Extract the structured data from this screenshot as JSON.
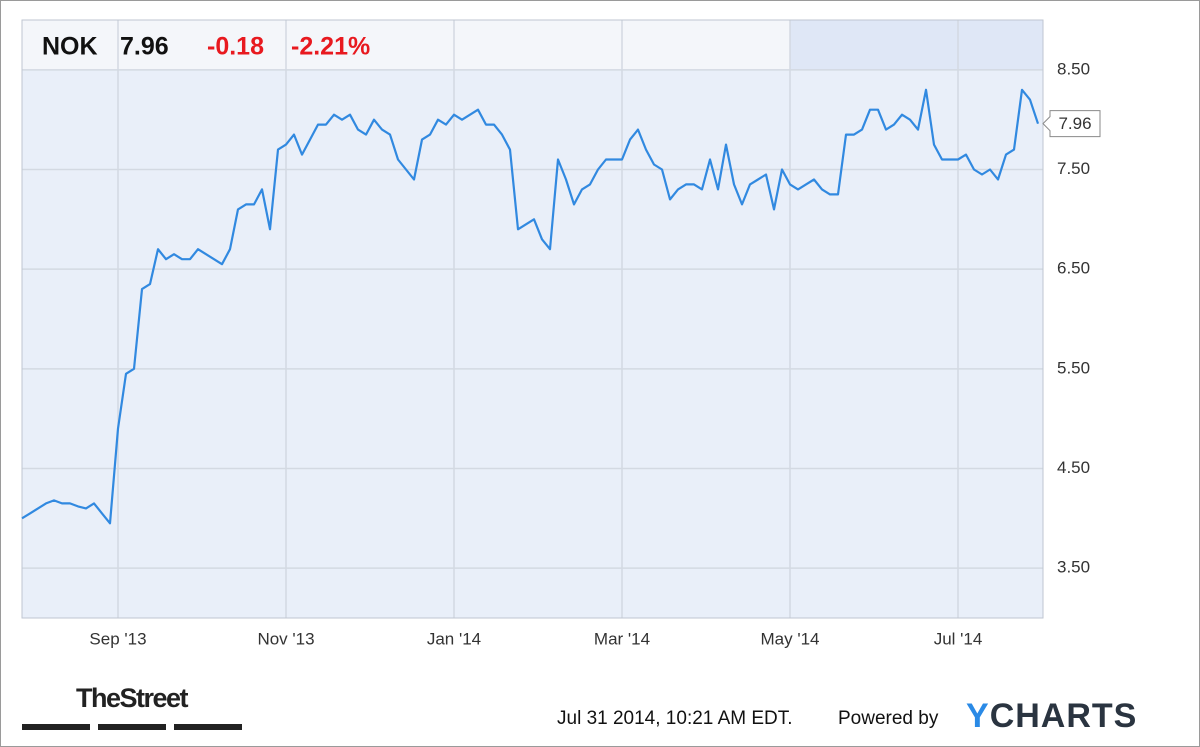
{
  "chart_data": {
    "type": "line",
    "title": "NOK",
    "price": "7.96",
    "change": "-0.18",
    "change_percent": "-2.21%",
    "color": "#3189e0",
    "categories": [
      null,
      null,
      null,
      null,
      null,
      null,
      null,
      null,
      null,
      null,
      null,
      null,
      "Sep '13",
      null,
      null,
      null,
      null,
      null,
      null,
      null,
      null,
      null,
      null,
      null,
      null,
      null,
      null,
      null,
      null,
      null,
      null,
      null,
      null,
      "Nov '13",
      null,
      null,
      null,
      null,
      null,
      null,
      null,
      null,
      null,
      null,
      null,
      null,
      null,
      null,
      null,
      null,
      null,
      null,
      null,
      null,
      "Jan '14",
      null,
      null,
      null,
      null,
      null,
      null,
      null,
      null,
      null,
      null,
      null,
      null,
      null,
      null,
      null,
      null,
      null,
      null,
      null,
      null,
      "Mar '14",
      null,
      null,
      null,
      null,
      null,
      null,
      null,
      null,
      null,
      null,
      null,
      null,
      null,
      null,
      null,
      null,
      null,
      null,
      null,
      null,
      "May '14",
      null,
      null,
      null,
      null,
      null,
      null,
      null,
      null,
      null,
      null,
      null,
      null,
      null,
      null,
      null,
      null,
      null,
      null,
      null,
      null,
      "Jul '14",
      null,
      null,
      null,
      null,
      null,
      null,
      null,
      null,
      null,
      null
    ],
    "values": [
      4.0,
      4.05,
      4.1,
      4.15,
      4.18,
      4.15,
      4.15,
      4.12,
      4.1,
      4.15,
      4.05,
      3.95,
      4.9,
      5.45,
      5.5,
      6.3,
      6.35,
      6.7,
      6.6,
      6.65,
      6.6,
      6.6,
      6.7,
      6.65,
      6.6,
      6.55,
      6.7,
      7.1,
      7.15,
      7.15,
      7.3,
      6.9,
      7.7,
      7.75,
      7.85,
      7.65,
      7.8,
      7.95,
      7.95,
      8.05,
      8.0,
      8.05,
      7.9,
      7.85,
      8.0,
      7.9,
      7.85,
      7.6,
      7.5,
      7.4,
      7.8,
      7.85,
      8.0,
      7.95,
      8.05,
      8.0,
      8.05,
      8.1,
      7.95,
      7.95,
      7.85,
      7.7,
      6.9,
      6.95,
      7.0,
      6.8,
      6.7,
      7.6,
      7.4,
      7.15,
      7.3,
      7.35,
      7.5,
      7.6,
      7.6,
      7.6,
      7.8,
      7.9,
      7.7,
      7.55,
      7.5,
      7.2,
      7.3,
      7.35,
      7.35,
      7.3,
      7.6,
      7.3,
      7.75,
      7.35,
      7.15,
      7.35,
      7.4,
      7.45,
      7.1,
      7.5,
      7.35,
      7.3,
      7.35,
      7.4,
      7.3,
      7.25,
      7.25,
      7.85,
      7.85,
      7.9,
      8.1,
      8.1,
      7.9,
      7.95,
      8.05,
      8.0,
      7.9,
      8.3,
      7.75,
      7.6,
      7.6,
      7.6,
      7.65,
      7.5,
      7.45,
      7.5,
      7.4,
      7.65,
      7.7,
      8.3,
      8.2,
      7.96
    ],
    "ylim": [
      3,
      9
    ],
    "yticks": [
      {
        "value": 3.5,
        "label": "3.50"
      },
      {
        "value": 4.5,
        "label": "4.50"
      },
      {
        "value": 5.5,
        "label": "5.50"
      },
      {
        "value": 6.5,
        "label": "6.50"
      },
      {
        "value": 7.5,
        "label": "7.50"
      },
      {
        "value": 8.5,
        "label": "8.50"
      }
    ],
    "grid": true,
    "source_logo": "TheStreet",
    "timestamp": "Jul 31 2014, 10:21 AM EDT.",
    "powered_by": "Powered by",
    "brand_y": "Y",
    "brand_rest": "CHARTS"
  }
}
